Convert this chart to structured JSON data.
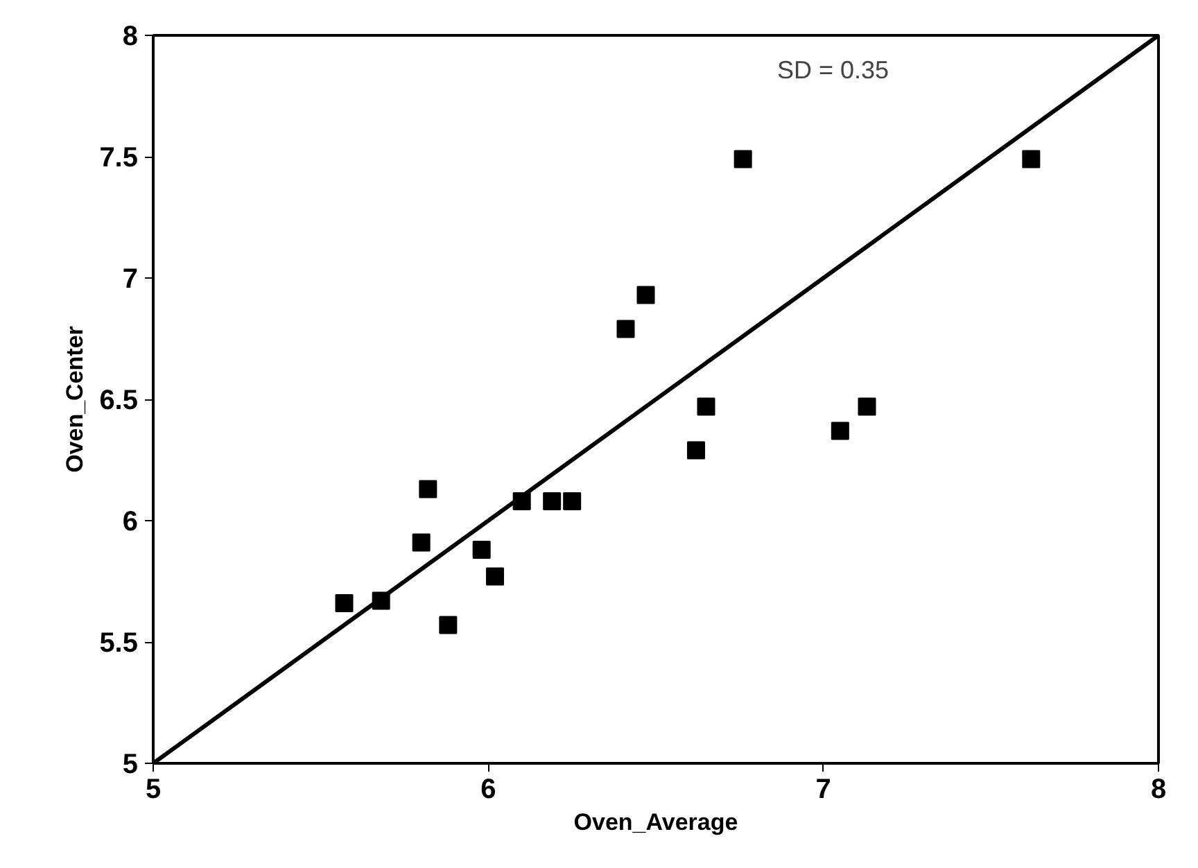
{
  "chart_data": {
    "type": "scatter",
    "xlabel": "Oven_Average",
    "ylabel": "Oven_Center",
    "xlim": [
      5,
      8
    ],
    "ylim": [
      5,
      8
    ],
    "xticks": [
      5,
      6,
      7,
      8
    ],
    "yticks": [
      5,
      5.5,
      6,
      6.5,
      7,
      7.5,
      8
    ],
    "grid": false,
    "annotations": [
      "SD = 0.35"
    ],
    "series": [
      {
        "color": "#000000",
        "marker": "square",
        "x": [
          5.57,
          5.68,
          5.88,
          5.8,
          5.82,
          5.98,
          6.02,
          6.1,
          6.19,
          6.25,
          6.76,
          7.62,
          6.47,
          6.41,
          6.65,
          6.62,
          7.13,
          7.05
        ],
        "values": [
          5.66,
          5.67,
          5.57,
          5.91,
          6.13,
          5.88,
          5.77,
          6.08,
          6.08,
          6.08,
          7.49,
          7.49,
          6.93,
          6.79,
          6.47,
          6.29,
          6.47,
          6.37
        ]
      },
      {
        "type": "line",
        "color": "#000000",
        "x": [
          5,
          8
        ],
        "values": [
          5,
          8
        ]
      }
    ]
  }
}
